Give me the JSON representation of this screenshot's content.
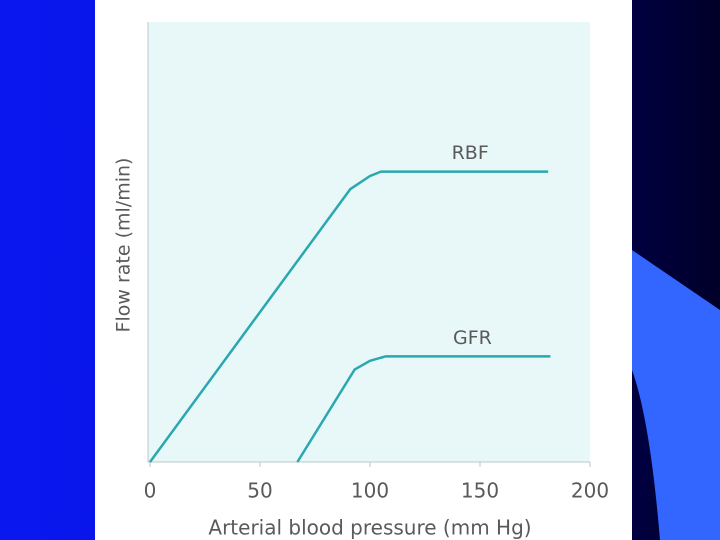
{
  "chart_data": {
    "type": "line",
    "xlabel": "Arterial blood pressure (mm Hg)",
    "ylabel": "Flow rate (ml/min)",
    "xlim": [
      0,
      200
    ],
    "xticks": [
      0,
      50,
      100,
      150,
      200
    ],
    "ylim": [
      0,
      100
    ],
    "series": [
      {
        "name": "RBF",
        "color": "#2aa8b0",
        "x": [
          0,
          91,
          100,
          105,
          181
        ],
        "values": [
          0,
          62,
          65,
          66,
          66
        ]
      },
      {
        "name": "GFR",
        "color": "#2aa8b0",
        "x": [
          67,
          93,
          100,
          107,
          182
        ],
        "values": [
          0,
          21,
          23,
          24,
          24
        ]
      }
    ]
  }
}
